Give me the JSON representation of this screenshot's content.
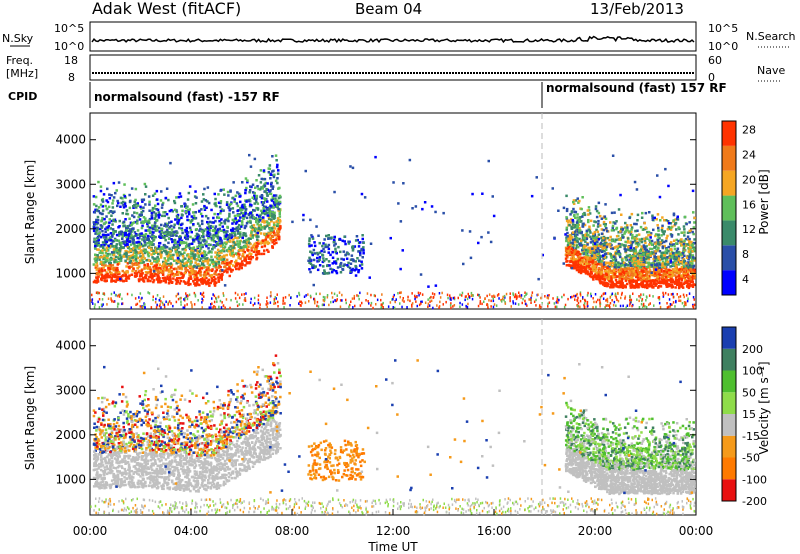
{
  "header": {
    "station": "Adak West (fitACF)",
    "beam": "Beam 04",
    "date": "13/Feb/2013"
  },
  "strip_labels": {
    "nsky": "N.Sky",
    "nsearch": "N.Search",
    "freq_line1": "Freq.",
    "freq_line2": "[MHz]",
    "nave": "Nave",
    "cpid": "CPID"
  },
  "noise_axis": {
    "left_ticks": [
      "10^5",
      "10^0"
    ],
    "right_ticks": [
      "10^5",
      "10^0"
    ]
  },
  "freq_axis": {
    "left_ticks": [
      "18",
      "8"
    ],
    "right_ticks": [
      "60",
      "0"
    ]
  },
  "cpid_labels": [
    {
      "text": "normalsound (fast) -157 RF",
      "start_hour": 0
    },
    {
      "text": "normalsound (fast) 157 RF",
      "start_hour": 18
    }
  ],
  "chart_data": [
    {
      "type": "heatmap",
      "name": "power-panel",
      "ylabel": "Slant Range [km]",
      "xlim_hours": [
        0,
        24
      ],
      "ylim_km": [
        200,
        4600
      ],
      "yticks": [
        1000,
        2000,
        3000,
        4000
      ],
      "colorbar": {
        "label": "Power [dB]",
        "ticks": [
          4,
          8,
          12,
          16,
          20,
          24,
          28
        ],
        "colors": [
          "#0000ff",
          "#2a4fa8",
          "#3a8a6a",
          "#5fbf5a",
          "#f5a623",
          "#f07a1a",
          "#ff3300"
        ]
      }
    },
    {
      "type": "heatmap",
      "name": "velocity-panel",
      "ylabel": "Slant Range [km]",
      "xlabel": "Time UT",
      "xlim_hours": [
        0,
        24
      ],
      "ylim_km": [
        200,
        4600
      ],
      "yticks": [
        1000,
        2000,
        3000,
        4000
      ],
      "xticks": [
        "00:00",
        "04:00",
        "08:00",
        "12:00",
        "16:00",
        "20:00",
        "00:00"
      ],
      "colorbar": {
        "label": "Velocity [m s⁻¹]",
        "ticks": [
          200,
          100,
          50,
          15,
          -15,
          -50,
          -100,
          -200
        ],
        "colors": [
          "#1a3fb0",
          "#3f8060",
          "#4fbf2f",
          "#8fdc4a",
          "#c0c0c0",
          "#f59a1a",
          "#ff7a00",
          "#e81010"
        ]
      }
    }
  ]
}
